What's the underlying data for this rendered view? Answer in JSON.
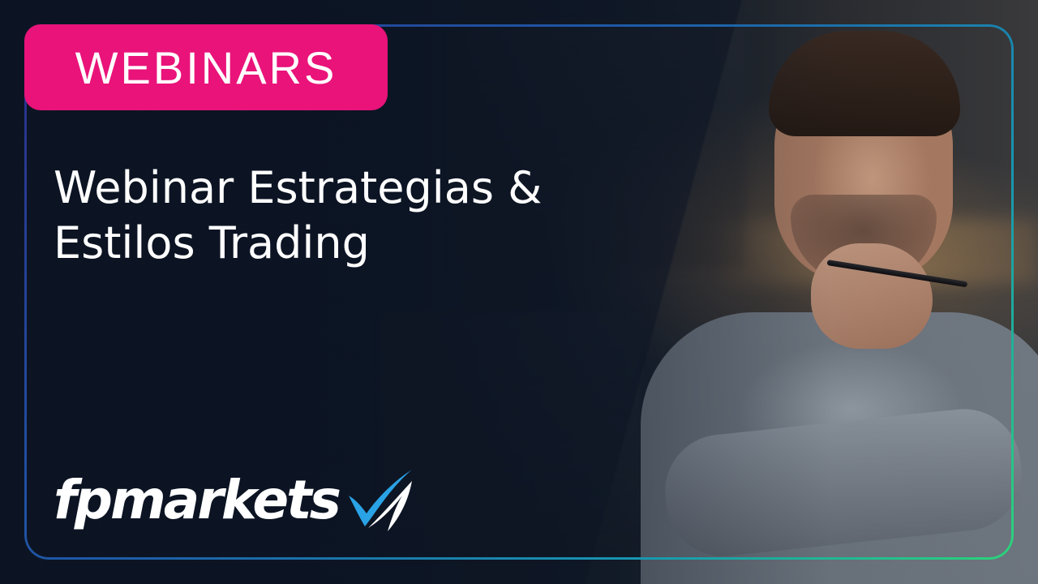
{
  "badge": {
    "label": "WEBINARS",
    "color": "#e9137a"
  },
  "title": {
    "line1": "Webinar Estrategias &",
    "line2": "Estilos Trading"
  },
  "brand": {
    "name": "fpmarkets",
    "mark_icon": "fpmarkets-swoosh-logo",
    "mark_colors": [
      "#2aa3e6",
      "#ffffff"
    ]
  },
  "frame": {
    "gradient_colors": [
      "#2a2f8a",
      "#1e5aa6",
      "#1796b0",
      "#2bd47a"
    ]
  }
}
